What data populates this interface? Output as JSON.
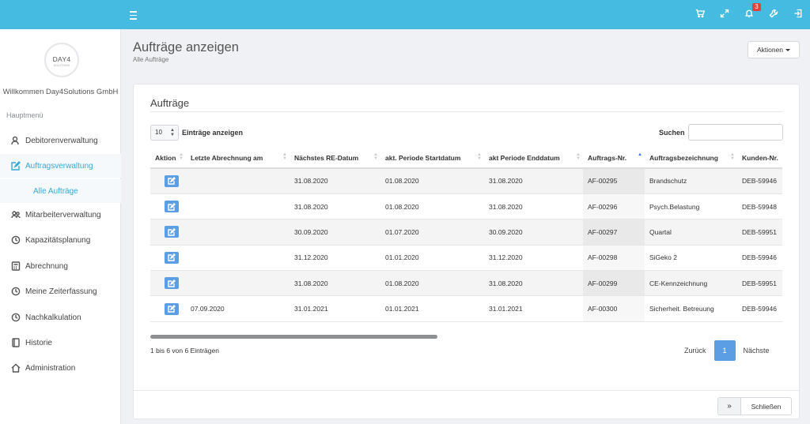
{
  "topbar": {
    "notification_count": "3",
    "color": "#46bbe2"
  },
  "sidebar": {
    "logo_text": "DAY4",
    "logo_subtext": "SOLUTIONS",
    "welcome": "Willkommen Day4Solutions GmbH",
    "menu_title": "Hauptmenü",
    "items": [
      {
        "label": "Debitorenverwaltung",
        "icon": "user-search-icon"
      },
      {
        "label": "Auftragsverwaltung",
        "icon": "edit-icon"
      },
      {
        "label": "Alle Aufträge",
        "icon": ""
      },
      {
        "label": "Mitarbeiterverwaltung",
        "icon": "users-icon"
      },
      {
        "label": "Kapazitätsplanung",
        "icon": "clock-icon"
      },
      {
        "label": "Abrechnung",
        "icon": "calculator-icon"
      },
      {
        "label": "Meine Zeiterfassung",
        "icon": "clock-icon"
      },
      {
        "label": "Nachkalkulation",
        "icon": "clock-icon"
      },
      {
        "label": "Historie",
        "icon": "book-icon"
      },
      {
        "label": "Administration",
        "icon": "home-icon"
      }
    ]
  },
  "header": {
    "title": "Aufträge anzeigen",
    "breadcrumb": "Alle Aufträge",
    "actions_label": "Aktionen"
  },
  "panel": {
    "title": "Aufträge",
    "length_value": "10",
    "length_label": "Einträge anzeigen",
    "search_label": "Suchen",
    "search_value": "",
    "columns": [
      "Aktion",
      "Letzte Abrechnung am",
      "Nächstes RE-Datum",
      "akt. Periode Startdatum",
      "akt Periode Enddatum",
      "Auftrags-Nr.",
      "Auftragsbezeichnung",
      "Kunden-Nr."
    ],
    "rows": [
      [
        "",
        "",
        "31.08.2020",
        "01.08.2020",
        "31.08.2020",
        "AF-00295",
        "Brandschutz",
        "DEB-59946"
      ],
      [
        "",
        "",
        "31.08.2020",
        "01.08.2020",
        "31.08.2020",
        "AF-00296",
        "Psych.Belastung",
        "DEB-59948"
      ],
      [
        "",
        "",
        "30.09.2020",
        "01.07.2020",
        "30.09.2020",
        "AF-00297",
        "Quartal",
        "DEB-59951"
      ],
      [
        "",
        "",
        "31.12.2020",
        "01.01.2020",
        "31.12.2020",
        "AF-00298",
        "SiGeko 2",
        "DEB-59946"
      ],
      [
        "",
        "",
        "31.08.2020",
        "01.08.2020",
        "31.08.2020",
        "AF-00299",
        "CE-Kennzeichnung",
        "DEB-59951"
      ],
      [
        "",
        "07.09.2020",
        "31.01.2021",
        "01.01.2021",
        "31.01.2021",
        "AF-00300",
        "Sicherheit. Betreuung",
        "DEB-59946"
      ]
    ],
    "info": "1 bis 6 von 6 Einträgen",
    "prev_label": "Zurück",
    "current_page": "1",
    "next_label": "Nächste",
    "chevron": "»",
    "close_label": "Schließen"
  }
}
